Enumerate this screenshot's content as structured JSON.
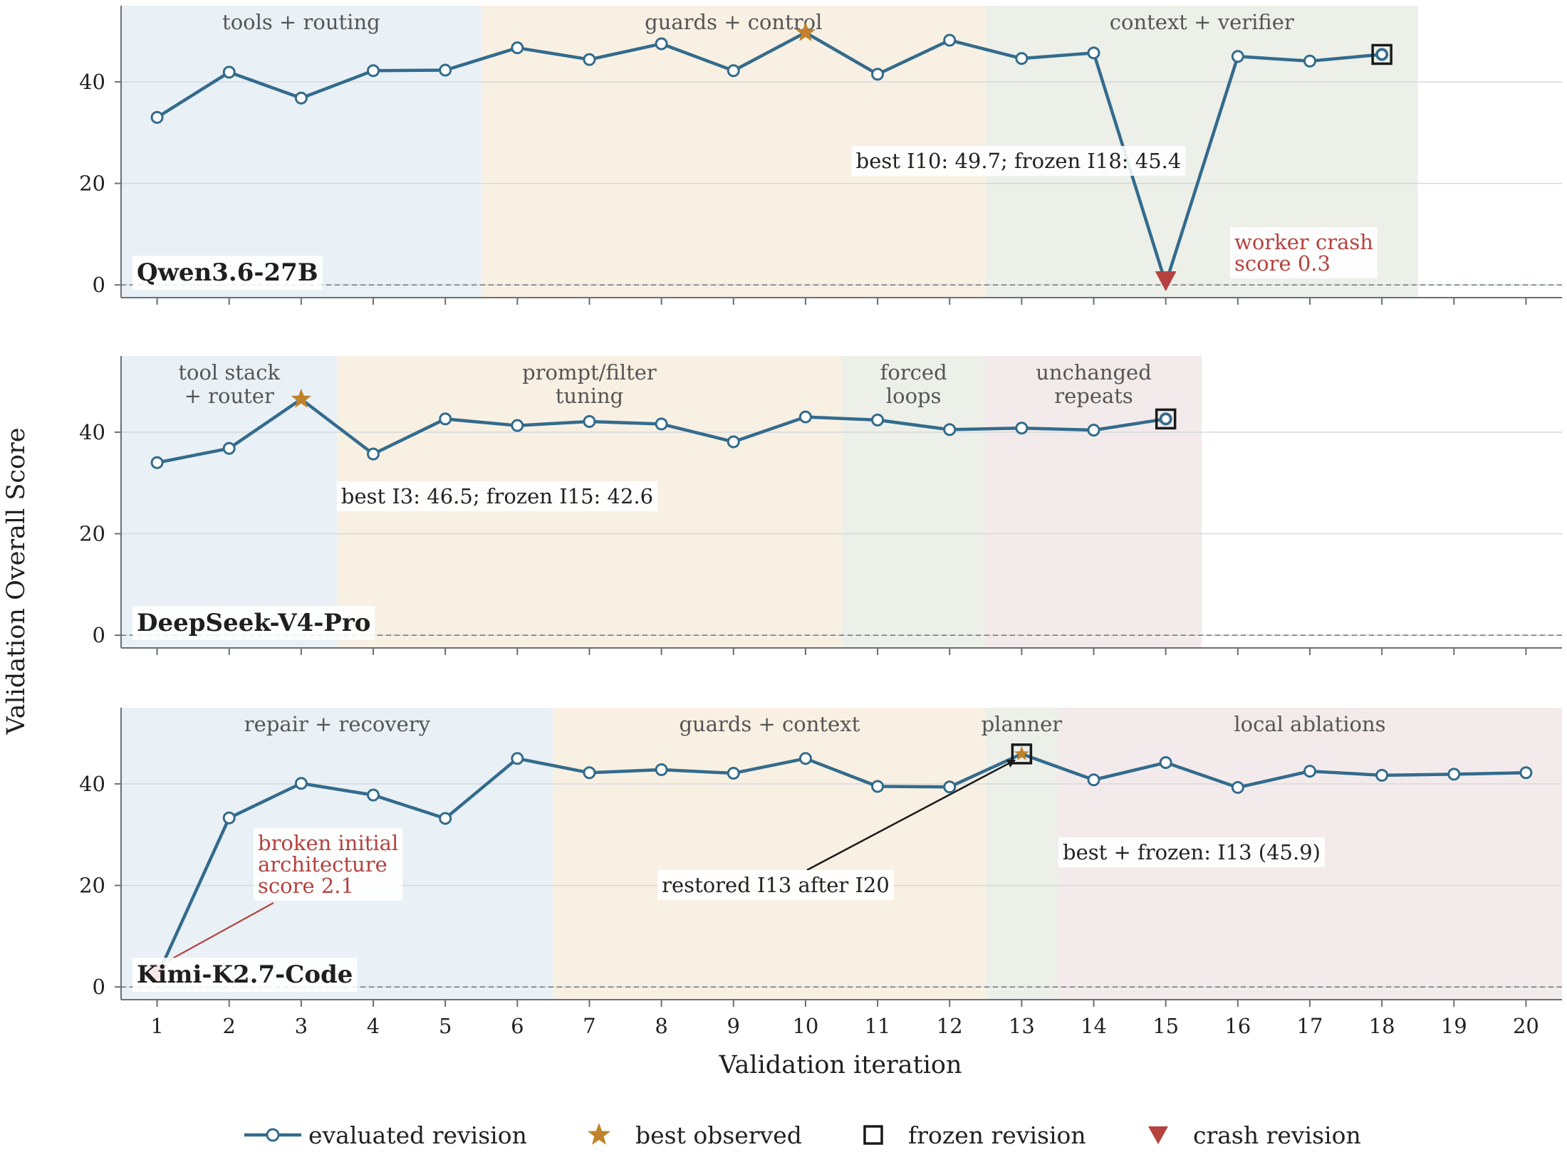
{
  "chart_data": {
    "type": "line",
    "xlabel": "Validation iteration",
    "ylabel": "Validation Overall Score",
    "xlim": [
      0.5,
      20.5
    ],
    "ylim": [
      -2.5,
      55
    ],
    "xticks": [
      1,
      2,
      3,
      4,
      5,
      6,
      7,
      8,
      9,
      10,
      11,
      12,
      13,
      14,
      15,
      16,
      17,
      18,
      19,
      20
    ],
    "yticks": [
      0,
      20,
      40
    ],
    "grid": "horizontal",
    "colors": {
      "line": "#336b8c",
      "best": "#c0822a",
      "frozen": "#1a1a1a",
      "crash": "#b5423f",
      "band_blue": "#e9f1f6",
      "band_orange": "#f8f0e3",
      "band_green": "#edefe9",
      "band_rose": "#f3ebeb"
    },
    "legend": {
      "position": "bottom",
      "entries": [
        {
          "key": "revision",
          "label": "evaluated revision"
        },
        {
          "key": "best",
          "label": "best observed"
        },
        {
          "key": "frozen",
          "label": "frozen revision"
        },
        {
          "key": "crash",
          "label": "crash revision"
        }
      ]
    },
    "panels": [
      {
        "title": "Qwen3.6-27B",
        "x": [
          1,
          2,
          3,
          4,
          5,
          6,
          7,
          8,
          9,
          10,
          11,
          12,
          13,
          14,
          15,
          16,
          17,
          18
        ],
        "y": [
          33.0,
          41.9,
          36.8,
          42.2,
          42.3,
          46.7,
          44.4,
          47.5,
          42.2,
          49.7,
          41.5,
          48.2,
          44.6,
          45.7,
          0.3,
          45.0,
          44.1,
          45.4
        ],
        "best": {
          "x": 10,
          "y": 49.7
        },
        "frozen": {
          "x": 18,
          "y": 45.4
        },
        "crash": {
          "x": 15,
          "y": 0.3
        },
        "bands": [
          {
            "from": 0.5,
            "to": 5.5,
            "color": "blue",
            "label": [
              "tools + routing"
            ]
          },
          {
            "from": 5.5,
            "to": 12.5,
            "color": "orange",
            "label": [
              "guards + control"
            ]
          },
          {
            "from": 12.5,
            "to": 18.5,
            "color": "green",
            "label": [
              "context + verifier"
            ]
          }
        ],
        "annotation": {
          "text": "best I10: 49.7; frozen I18: 45.4"
        },
        "crash_note": {
          "lines": [
            "worker crash",
            "score 0.3"
          ]
        }
      },
      {
        "title": "DeepSeek-V4-Pro",
        "x": [
          1,
          2,
          3,
          4,
          5,
          6,
          7,
          8,
          9,
          10,
          11,
          12,
          13,
          14,
          15
        ],
        "y": [
          34.0,
          36.8,
          46.5,
          35.7,
          42.6,
          41.3,
          42.1,
          41.6,
          38.1,
          43.0,
          42.4,
          40.5,
          40.8,
          40.4,
          42.6
        ],
        "best": {
          "x": 3,
          "y": 46.5
        },
        "frozen": {
          "x": 15,
          "y": 42.6
        },
        "bands": [
          {
            "from": 0.5,
            "to": 3.5,
            "color": "blue",
            "label": [
              "tool stack",
              "+ router"
            ]
          },
          {
            "from": 3.5,
            "to": 10.5,
            "color": "orange",
            "label": [
              "prompt/filter",
              "tuning"
            ]
          },
          {
            "from": 10.5,
            "to": 12.5,
            "color": "green",
            "label": [
              "forced",
              "loops"
            ]
          },
          {
            "from": 12.5,
            "to": 15.5,
            "color": "rose",
            "label": [
              "unchanged",
              "repeats"
            ]
          }
        ],
        "annotation": {
          "text": "best I3: 46.5; frozen I15: 42.6"
        }
      },
      {
        "title": "Kimi-K2.7-Code",
        "x": [
          1,
          2,
          3,
          4,
          5,
          6,
          7,
          8,
          9,
          10,
          11,
          12,
          13,
          14,
          15,
          16,
          17,
          18,
          19,
          20
        ],
        "y": [
          2.1,
          33.3,
          40.1,
          37.8,
          33.2,
          45.0,
          42.2,
          42.8,
          42.1,
          45.0,
          39.5,
          39.4,
          45.9,
          40.8,
          44.2,
          39.3,
          42.5,
          41.7,
          41.9,
          42.2
        ],
        "best": {
          "x": 13,
          "y": 45.9
        },
        "frozen": {
          "x": 13,
          "y": 45.9
        },
        "crash": {
          "x": 1,
          "y": 2.1
        },
        "bands": [
          {
            "from": 0.5,
            "to": 6.5,
            "color": "blue",
            "label": [
              "repair + recovery"
            ]
          },
          {
            "from": 6.5,
            "to": 12.5,
            "color": "orange",
            "label": [
              "guards + context"
            ]
          },
          {
            "from": 12.5,
            "to": 13.5,
            "color": "green",
            "label": [
              "planner"
            ]
          },
          {
            "from": 13.5,
            "to": 20.5,
            "color": "rose",
            "label": [
              "local ablations"
            ]
          }
        ],
        "annotation": {
          "text": "best + frozen: I13 (45.9)"
        },
        "arrow_note": {
          "text": "restored I13 after I20"
        },
        "crash_note": {
          "lines": [
            "broken initial",
            "architecture",
            "score 2.1"
          ]
        }
      }
    ]
  }
}
